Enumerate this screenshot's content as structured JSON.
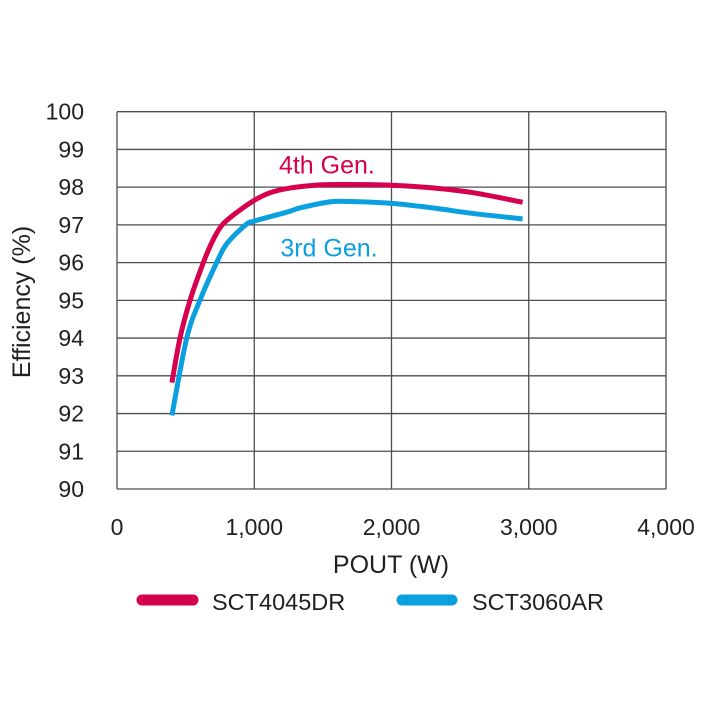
{
  "chart_data": {
    "type": "line",
    "title": "",
    "xlabel": "POUT (W)",
    "ylabel": "Efficiency (%)",
    "xlim": [
      0,
      4000
    ],
    "ylim": [
      90,
      100
    ],
    "x_ticks": [
      0,
      1000,
      2000,
      3000,
      4000
    ],
    "x_tick_labels": [
      "0",
      "1,000",
      "2,000",
      "3,000",
      "4,000"
    ],
    "y_ticks": [
      90,
      91,
      92,
      93,
      94,
      95,
      96,
      97,
      98,
      99,
      100
    ],
    "y_tick_labels": [
      "90",
      "91",
      "92",
      "93",
      "94",
      "95",
      "96",
      "97",
      "98",
      "99",
      "100"
    ],
    "grid": true,
    "legend_position": "bottom",
    "series": [
      {
        "name": "SCT4045DR",
        "color": "#d6004f",
        "points": [
          [
            400,
            92.82
          ],
          [
            459,
            94.0
          ],
          [
            532,
            95.0
          ],
          [
            629,
            96.0
          ],
          [
            700,
            96.6
          ],
          [
            767,
            97.0
          ],
          [
            880,
            97.35
          ],
          [
            1000,
            97.65
          ],
          [
            1114,
            97.85
          ],
          [
            1250,
            97.97
          ],
          [
            1478,
            98.06
          ],
          [
            1700,
            98.07
          ],
          [
            2000,
            98.05
          ],
          [
            2300,
            97.98
          ],
          [
            2600,
            97.85
          ],
          [
            2955,
            97.6
          ]
        ]
      },
      {
        "name": "SCT3060AR",
        "color": "#0aa0e0",
        "points": [
          [
            400,
            91.95
          ],
          [
            508,
            94.0
          ],
          [
            604,
            95.0
          ],
          [
            726,
            96.0
          ],
          [
            800,
            96.5
          ],
          [
            937,
            97.0
          ],
          [
            1000,
            97.1
          ],
          [
            1250,
            97.35
          ],
          [
            1333,
            97.45
          ],
          [
            1551,
            97.61
          ],
          [
            1700,
            97.62
          ],
          [
            2000,
            97.57
          ],
          [
            2300,
            97.45
          ],
          [
            2600,
            97.3
          ],
          [
            2955,
            97.16
          ]
        ]
      }
    ],
    "annotations": [
      {
        "text": "4th Gen.",
        "color": "#d6004f",
        "x": 1180,
        "y": 98.6
      },
      {
        "text": "3rd Gen.",
        "color": "#0aa0e0",
        "x": 1190,
        "y": 96.4
      }
    ]
  },
  "legend": {
    "items": [
      {
        "label": "SCT4045DR",
        "color": "#d6004f"
      },
      {
        "label": "SCT3060AR",
        "color": "#0aa0e0"
      }
    ]
  },
  "style": {
    "grid_color": "#4d4d4d",
    "text_color": "#231f20",
    "background": "#ffffff"
  }
}
